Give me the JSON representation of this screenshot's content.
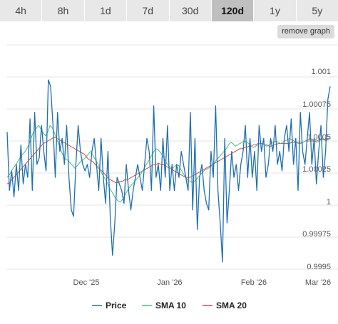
{
  "tabs": [
    {
      "label": "4h",
      "active": false
    },
    {
      "label": "8h",
      "active": false
    },
    {
      "label": "1d",
      "active": false
    },
    {
      "label": "7d",
      "active": false
    },
    {
      "label": "30d",
      "active": false
    },
    {
      "label": "120d",
      "active": true
    },
    {
      "label": "1y",
      "active": false
    },
    {
      "label": "5y",
      "active": false
    }
  ],
  "remove_graph_label": "remove graph",
  "chart_data": {
    "type": "line",
    "x_ticks": [
      "Dec '25",
      "Jan '26",
      "Feb '26",
      "Mar '26"
    ],
    "y_ticks": [
      "1.001",
      "1.00075",
      "1.0005",
      "1.00025",
      "1",
      "0.99975",
      "0.9995"
    ],
    "ylim": [
      0.9995,
      1.001
    ],
    "grid": true,
    "legend_position": "bottom",
    "series": [
      {
        "name": "Price",
        "color": "#1f6fb2",
        "values": [
          1.00055,
          1.0001,
          1.00025,
          1.00005,
          1.0003,
          1.0001,
          1.00045,
          1.00015,
          1.0003,
          1.0002,
          1.00065,
          1.0001,
          1.0007,
          1.0003,
          1.00035,
          1.0006,
          1.0004,
          1.00025,
          1.00095,
          1.0009,
          1.0006,
          1.0002,
          1.0007,
          1.0004,
          1.0005,
          1.0003,
          1.0006,
          1.0002,
          0.99995,
          0.9999,
          1.0003,
          1.0006,
          1.0004,
          1.0003,
          1.00025,
          1.0003,
          1.0002,
          1.0004,
          1.0005,
          1.0003,
          1.0001,
          1.0005,
          1.0002,
          1.0,
          1.0004,
          0.9999,
          0.9996,
          0.99985,
          1.0002,
          1.00015,
          1.0001,
          1.0,
          1.0003,
          1.0001,
          0.99995,
          1.0001,
          1.0002,
          1.0003,
          1.0002,
          1.0001,
          1.0003,
          1.0005,
          1.0004,
          1.0001,
          1.00075,
          1.0002,
          1.0003,
          1.0001,
          1.0005,
          1.0002,
          1.0006,
          1.0001,
          1.0003,
          1.0001,
          1.0003,
          1.0002,
          1.0004,
          1.0003,
          1.0002,
          1.0001,
          1.0007,
          0.99995,
          1.0005,
          0.9998,
          1.0002,
          1.0003,
          1.0001,
          1.0,
          0.99995,
          1.0004,
          1.0002,
          1.00075,
          1.0001,
          0.99985,
          0.99955,
          1.0005,
          0.99985,
          1.0001,
          1.0004,
          1.0002,
          1.0003,
          1.0001,
          1.0003,
          1.0004,
          1.0006,
          1.0002,
          1.0005,
          1.0002,
          1.0004,
          1.0001,
          1.0006,
          1.0004,
          1.0005,
          1.0002,
          1.0003,
          1.0005,
          1.0004,
          1.0006,
          1.0003,
          1.0004,
          1.00025,
          1.0005,
          1.0006,
          1.0004,
          1.00065,
          1.0003,
          1.0005,
          1.0001,
          1.0007,
          1.0004,
          1.0003,
          1.0005,
          1.0007,
          1.0003,
          1.0005,
          1.00015,
          1.0004,
          1.0006,
          1.0002,
          1.0004,
          1.0008,
          1.0009
        ]
      },
      {
        "name": "SMA 10",
        "color": "#3fc47a",
        "values": [
          1.0002,
          1.00022,
          1.00025,
          1.00028,
          1.0003,
          1.00033,
          1.00036,
          1.00038,
          1.0004,
          1.00043,
          1.00047,
          1.00052,
          1.00056,
          1.00058,
          1.0006,
          1.00057,
          1.00054,
          1.00052,
          1.00055,
          1.0006,
          1.00058,
          1.00054,
          1.00049,
          1.00045,
          1.0004,
          1.00036,
          1.00034,
          1.00033,
          1.00031,
          1.00029,
          1.00027,
          1.00029,
          1.00031,
          1.00033,
          1.00034,
          1.00036,
          1.00038,
          1.0004,
          1.00037,
          1.00034,
          1.00031,
          1.00027,
          1.00023,
          1.0002,
          1.00017,
          1.00013,
          1.0001,
          1.00007,
          1.00004,
          1.00002,
          1.00001,
          1.00003,
          1.00006,
          1.00009,
          1.00012,
          1.00014,
          1.00016,
          1.00018,
          1.0002,
          1.00022,
          1.00025,
          1.00028,
          1.00031,
          1.00034,
          1.00037,
          1.0004,
          1.00042,
          1.00041,
          1.00039,
          1.00036,
          1.00033,
          1.0003,
          1.00028,
          1.00027,
          1.00028,
          1.0003,
          1.00029,
          1.00026,
          1.00023,
          1.0002,
          1.00018,
          1.00017,
          1.00016,
          1.00017,
          1.00019,
          1.00021,
          1.00023,
          1.00025,
          1.00026,
          1.00027,
          1.00028,
          1.0003,
          1.00032,
          1.00034,
          1.00036,
          1.00038,
          1.0004,
          1.00042,
          1.00045,
          1.00047,
          1.00046,
          1.00044,
          1.00045,
          1.00046,
          1.00047,
          1.00048,
          1.00047,
          1.00046,
          1.00044,
          1.00043,
          1.00044,
          1.00045,
          1.00046,
          1.00046,
          1.00045,
          1.00044,
          1.00045,
          1.00046,
          1.00047,
          1.00048,
          1.00047,
          1.00046,
          1.00047,
          1.00048,
          1.00049,
          1.0005,
          1.00049,
          1.00048,
          1.00047,
          1.00046,
          1.00046,
          1.00047,
          1.00048,
          1.00049,
          1.0005,
          1.00049,
          1.00048,
          1.00047,
          1.00048,
          1.00049,
          1.0005,
          1.00048,
          1.00049,
          1.0005
        ]
      },
      {
        "name": "SMA 20",
        "color": "#e0453b",
        "values": [
          1.00015,
          1.00016,
          1.00018,
          1.0002,
          1.00022,
          1.00024,
          1.00026,
          1.00028,
          1.0003,
          1.00032,
          1.00034,
          1.00036,
          1.00038,
          1.0004,
          1.00042,
          1.00044,
          1.00046,
          1.00047,
          1.00048,
          1.00049,
          1.0005,
          1.00051,
          1.0005,
          1.00049,
          1.00048,
          1.00047,
          1.00046,
          1.00045,
          1.00044,
          1.00043,
          1.00042,
          1.00041,
          1.0004,
          1.00039,
          1.00038,
          1.00036,
          1.00034,
          1.00033,
          1.00032,
          1.0003,
          1.00028,
          1.00026,
          1.00025,
          1.00023,
          1.00021,
          1.00019,
          1.00018,
          1.00017,
          1.00016,
          1.00016,
          1.00017,
          1.00017,
          1.00018,
          1.00018,
          1.00019,
          1.0002,
          1.00021,
          1.00022,
          1.00023,
          1.00024,
          1.00025,
          1.00026,
          1.00027,
          1.00028,
          1.00029,
          1.0003,
          1.0003,
          1.00031,
          1.0003,
          1.0003,
          1.00029,
          1.00028,
          1.00027,
          1.00026,
          1.00025,
          1.00024,
          1.00023,
          1.00022,
          1.00021,
          1.0002,
          1.0002,
          1.0002,
          1.00021,
          1.00022,
          1.00023,
          1.00024,
          1.00025,
          1.00026,
          1.00027,
          1.00028,
          1.00029,
          1.0003,
          1.00031,
          1.00032,
          1.00033,
          1.00034,
          1.00035,
          1.00036,
          1.00037,
          1.00038,
          1.00039,
          1.0004,
          1.00041,
          1.00042,
          1.00042,
          1.00043,
          1.00043,
          1.00044,
          1.00044,
          1.00045,
          1.00045,
          1.00046,
          1.00046,
          1.00046,
          1.00045,
          1.00045,
          1.00044,
          1.00044,
          1.00045,
          1.00045,
          1.00046,
          1.00046,
          1.00046,
          1.00046,
          1.00046,
          1.00046,
          1.00047,
          1.00047,
          1.00047,
          1.00047,
          1.00047,
          1.00047,
          1.00048,
          1.00048,
          1.00048,
          1.00048,
          1.00048,
          1.00048,
          1.00049,
          1.00049,
          1.00049,
          1.00049,
          1.0005,
          1.0005
        ]
      }
    ]
  }
}
